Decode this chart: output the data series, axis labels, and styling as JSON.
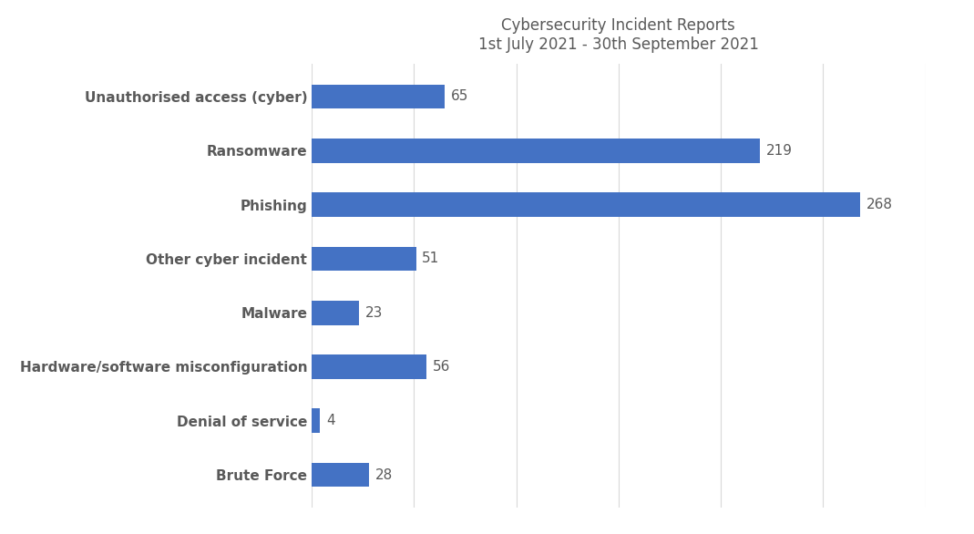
{
  "title_line1": "Cybersecurity Incident Reports",
  "title_line2": "1st July 2021 - 30th September 2021",
  "categories": [
    "Brute Force",
    "Denial of service",
    "Hardware/software misconfiguration",
    "Malware",
    "Other cyber incident",
    "Phishing",
    "Ransomware",
    "Unauthorised access (cyber)"
  ],
  "values": [
    28,
    4,
    56,
    23,
    51,
    268,
    219,
    65
  ],
  "bar_color": "#4472C4",
  "label_color": "#595959",
  "title_color": "#595959",
  "background_color": "#ffffff",
  "xlim": [
    0,
    300
  ],
  "bar_height": 0.45,
  "title_fontsize": 12,
  "tick_fontsize": 11,
  "value_fontsize": 11,
  "grid_color": "#d9d9d9",
  "grid_xticks": [
    0,
    50,
    100,
    150,
    200,
    250,
    300
  ]
}
